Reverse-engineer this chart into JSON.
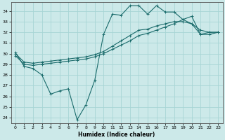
{
  "xlabel": "Humidex (Indice chaleur)",
  "ylabel": "",
  "bg_color": "#cce9e9",
  "grid_color": "#a8d5d5",
  "line_color": "#1a6b6b",
  "xlim": [
    -0.5,
    23.5
  ],
  "ylim": [
    23.5,
    34.8
  ],
  "yticks": [
    24,
    25,
    26,
    27,
    28,
    29,
    30,
    31,
    32,
    33,
    34
  ],
  "xticks": [
    0,
    1,
    2,
    3,
    4,
    5,
    6,
    7,
    8,
    9,
    10,
    11,
    12,
    13,
    14,
    15,
    16,
    17,
    18,
    19,
    20,
    21,
    22,
    23
  ],
  "line1_x": [
    0,
    1,
    2,
    3,
    4,
    5,
    6,
    7,
    8,
    9,
    10,
    11,
    12,
    13,
    14,
    15,
    16,
    17,
    18,
    19,
    20,
    21,
    22,
    23
  ],
  "line1_y": [
    30.1,
    28.8,
    28.6,
    28.0,
    26.2,
    26.5,
    26.7,
    23.8,
    25.2,
    27.5,
    31.8,
    33.7,
    33.6,
    34.5,
    34.5,
    33.7,
    34.5,
    33.9,
    33.9,
    33.2,
    32.8,
    31.8,
    32.0,
    32.0
  ],
  "line2_x": [
    0,
    1,
    2,
    3,
    4,
    5,
    6,
    7,
    8,
    9,
    10,
    11,
    12,
    13,
    14,
    15,
    16,
    17,
    18,
    19,
    20,
    21,
    22,
    23
  ],
  "line2_y": [
    30.0,
    29.2,
    29.1,
    29.2,
    29.3,
    29.4,
    29.5,
    29.6,
    29.7,
    29.9,
    30.2,
    30.7,
    31.2,
    31.7,
    32.2,
    32.3,
    32.6,
    32.8,
    33.0,
    33.0,
    32.8,
    32.2,
    32.0,
    32.0
  ],
  "line3_x": [
    0,
    1,
    2,
    3,
    4,
    5,
    6,
    7,
    8,
    9,
    10,
    11,
    12,
    13,
    14,
    15,
    16,
    17,
    18,
    19,
    20,
    21,
    22,
    23
  ],
  "line3_y": [
    29.8,
    29.0,
    28.9,
    29.0,
    29.1,
    29.2,
    29.3,
    29.4,
    29.5,
    29.7,
    30.0,
    30.4,
    30.8,
    31.2,
    31.7,
    31.9,
    32.2,
    32.5,
    32.8,
    33.2,
    33.5,
    31.8,
    31.8,
    32.0
  ]
}
